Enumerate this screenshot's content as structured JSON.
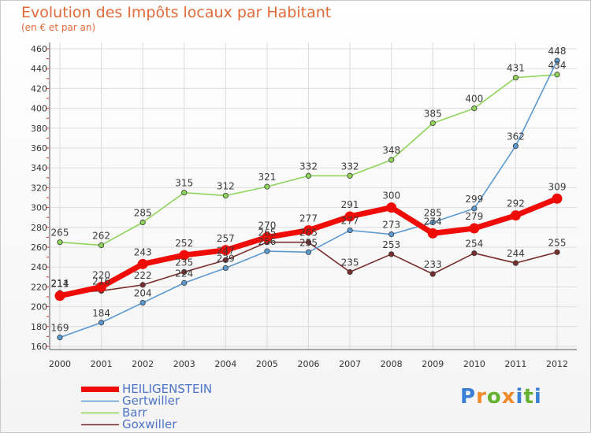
{
  "header": {
    "title": "Evolution des Impôts locaux par Habitant",
    "subtitle": "(en € et par an)"
  },
  "logo": {
    "text": "Proxiti",
    "letter_colors": [
      "#3a7fd6",
      "#f08a2a",
      "#67b130",
      "#f08a2a",
      "#3a7fd6",
      "#67b130",
      "#3a7fd6"
    ]
  },
  "chart_data": {
    "type": "line",
    "title": "Evolution des Impôts locaux par Habitant",
    "subtitle": "(en € et par an)",
    "xlabel": "",
    "ylabel": "",
    "x": [
      "2000",
      "2001",
      "2002",
      "2003",
      "2004",
      "2005",
      "2006",
      "2007",
      "2008",
      "2009",
      "2010",
      "2011",
      "2012"
    ],
    "ylim": [
      160,
      460
    ],
    "yticks": [
      160,
      180,
      200,
      220,
      240,
      260,
      280,
      300,
      320,
      340,
      360,
      380,
      400,
      420,
      440,
      460
    ],
    "grid": true,
    "legend_position": "bottom-left",
    "series": [
      {
        "name": "HEILIGENSTEIN",
        "color": "#ef0c07",
        "values": [
          211,
          220,
          243,
          252,
          257,
          270,
          277,
          291,
          300,
          274,
          279,
          292,
          309
        ]
      },
      {
        "name": "Gertwiller",
        "color": "#5b99d0",
        "values": [
          169,
          184,
          204,
          224,
          239,
          256,
          255,
          277,
          273,
          285,
          299,
          362,
          448
        ]
      },
      {
        "name": "Barr",
        "color": "#8fd45a",
        "values": [
          265,
          262,
          285,
          315,
          312,
          321,
          332,
          332,
          348,
          385,
          400,
          431,
          434
        ]
      },
      {
        "name": "Goxwiller",
        "color": "#7a2d2d",
        "values": [
          214,
          216,
          222,
          235,
          247,
          265,
          265,
          235,
          253,
          233,
          254,
          244,
          255
        ]
      }
    ]
  }
}
